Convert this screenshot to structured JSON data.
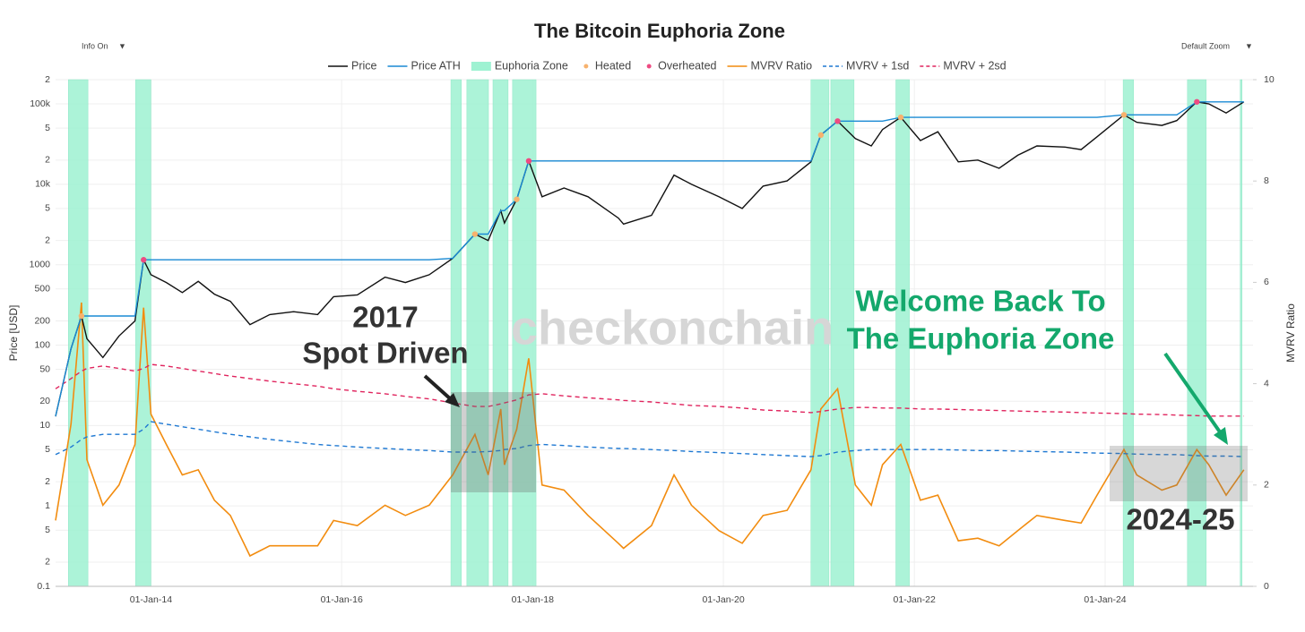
{
  "chart_data": {
    "type": "line",
    "title": "The Bitcoin Euphoria Zone",
    "controls": [
      "Info On",
      "Default Zoom"
    ],
    "watermark": "checkonchain",
    "ylabel": "Price [USD]",
    "y2label": "MVRV Ratio",
    "ylog": true,
    "grid": true,
    "legend": "top",
    "xlim": [
      "2013-01-01",
      "2025-07-20"
    ],
    "xticks": [
      {
        "value": "2014-01-01",
        "label": "01-Jan-14"
      },
      {
        "value": "2016-01-01",
        "label": "01-Jan-16"
      },
      {
        "value": "2018-01-01",
        "label": "01-Jan-18"
      },
      {
        "value": "2020-01-01",
        "label": "01-Jan-20"
      },
      {
        "value": "2022-01-01",
        "label": "01-Jan-22"
      },
      {
        "value": "2024-01-01",
        "label": "01-Jan-24"
      }
    ],
    "ylim": [
      0.1,
      200000
    ],
    "yticks": [
      0.1,
      {
        "value": 0.2,
        "label": "2"
      },
      {
        "value": 0.5,
        "label": "5"
      },
      1,
      2,
      5,
      10,
      20,
      50,
      100,
      200,
      500,
      1000,
      {
        "value": 2000,
        "label": "2"
      },
      {
        "value": 5000,
        "label": "5"
      },
      {
        "value": 10000,
        "label": "10k"
      },
      {
        "value": 20000,
        "label": "2"
      },
      {
        "value": 50000,
        "label": "5"
      },
      {
        "value": 100000,
        "label": "100k"
      },
      {
        "value": 200000,
        "label": "2"
      }
    ],
    "y2lim": [
      0,
      10
    ],
    "y2ticks": [
      0,
      2,
      4,
      6,
      8,
      10
    ],
    "x": [
      "2013-01-01",
      "2013-03-01",
      "2013-04-10",
      "2013-05-01",
      "2013-07-01",
      "2013-09-01",
      "2013-11-01",
      "2013-12-04",
      "2014-01-01",
      "2014-03-01",
      "2014-05-01",
      "2014-07-01",
      "2014-09-01",
      "2014-11-01",
      "2015-01-15",
      "2015-04-01",
      "2015-07-01",
      "2015-10-01",
      "2015-12-01",
      "2016-03-01",
      "2016-06-15",
      "2016-09-01",
      "2016-12-01",
      "2017-03-01",
      "2017-05-25",
      "2017-07-15",
      "2017-09-01",
      "2017-09-15",
      "2017-11-01",
      "2017-12-17",
      "2018-02-06",
      "2018-05-01",
      "2018-08-01",
      "2018-11-25",
      "2018-12-15",
      "2019-04-01",
      "2019-06-26",
      "2019-09-01",
      "2019-12-15",
      "2020-03-13",
      "2020-06-01",
      "2020-09-01",
      "2020-12-01",
      "2021-01-08",
      "2021-03-13",
      "2021-05-20",
      "2021-07-20",
      "2021-09-01",
      "2021-11-10",
      "2022-01-24",
      "2022-04-01",
      "2022-06-18",
      "2022-09-01",
      "2022-11-21",
      "2023-02-01",
      "2023-04-15",
      "2023-08-01",
      "2023-10-01",
      "2023-12-01",
      "2024-03-13",
      "2024-05-01",
      "2024-08-05",
      "2024-10-01",
      "2024-12-17",
      "2025-02-01",
      "2025-04-08",
      "2025-06-15"
    ],
    "series": [
      {
        "name": "Price",
        "style": "line",
        "axis": "y",
        "color": "#111111",
        "values": [
          13,
          90,
          230,
          120,
          70,
          130,
          200,
          1150,
          750,
          600,
          450,
          620,
          430,
          350,
          180,
          240,
          260,
          240,
          400,
          420,
          700,
          600,
          750,
          1200,
          2400,
          2000,
          4700,
          3300,
          6500,
          19500,
          7000,
          9000,
          7000,
          3800,
          3200,
          4100,
          13000,
          10000,
          7000,
          5000,
          9500,
          11000,
          19000,
          41000,
          61000,
          37000,
          30000,
          48000,
          68000,
          35000,
          45000,
          19000,
          20000,
          15800,
          23000,
          30000,
          29000,
          27000,
          39000,
          73000,
          59000,
          54000,
          62000,
          106000,
          100000,
          77000,
          106000
        ]
      },
      {
        "name": "Price ATH",
        "style": "line",
        "axis": "y",
        "color": "#1a8ad4",
        "values": [
          13,
          90,
          230,
          230,
          230,
          230,
          230,
          1150,
          1150,
          1150,
          1150,
          1150,
          1150,
          1150,
          1150,
          1150,
          1150,
          1150,
          1150,
          1150,
          1150,
          1150,
          1150,
          1200,
          2400,
          2400,
          4700,
          4700,
          6500,
          19500,
          19500,
          19500,
          19500,
          19500,
          19500,
          19500,
          19500,
          19500,
          19500,
          19500,
          19500,
          19500,
          19500,
          41000,
          61000,
          61000,
          61000,
          61000,
          68000,
          68000,
          68000,
          68000,
          68000,
          68000,
          68000,
          68000,
          68000,
          68000,
          68000,
          73000,
          73000,
          73000,
          73000,
          106000,
          106000,
          106000,
          106000
        ]
      },
      {
        "name": "Euphoria Zone",
        "style": "zone",
        "color": "#9ef2d2",
        "zones": [
          [
            "2013-02-19",
            "2013-05-05"
          ],
          [
            "2013-11-03",
            "2014-01-01"
          ],
          [
            "2017-02-22",
            "2017-04-03"
          ],
          [
            "2017-04-24",
            "2017-07-16"
          ],
          [
            "2017-08-02",
            "2017-09-29"
          ],
          [
            "2017-10-16",
            "2018-01-14"
          ],
          [
            "2020-12-01",
            "2021-02-08"
          ],
          [
            "2021-02-15",
            "2021-05-15"
          ],
          [
            "2021-10-22",
            "2021-12-13"
          ],
          [
            "2024-03-10",
            "2024-04-19"
          ],
          [
            "2024-11-11",
            "2025-01-22"
          ],
          [
            "2025-06-01",
            "2025-06-08"
          ]
        ]
      },
      {
        "name": "Heated",
        "style": "marker",
        "axis": "y",
        "color": "#f7b26e",
        "x": [
          "2013-04-10",
          "2017-05-25",
          "2017-11-01",
          "2021-01-08",
          "2021-11-10",
          "2024-03-13"
        ],
        "values": [
          230,
          2400,
          6500,
          41000,
          68000,
          73000
        ]
      },
      {
        "name": "Overheated",
        "style": "marker",
        "axis": "y",
        "color": "#ee4b82",
        "x": [
          "2013-12-04",
          "2017-12-17",
          "2021-03-13",
          "2024-12-17"
        ],
        "values": [
          1150,
          19500,
          61000,
          106000
        ]
      },
      {
        "name": "MVRV Ratio",
        "style": "line",
        "axis": "y2",
        "color": "#f28c0f",
        "values": [
          1.3,
          3.2,
          5.6,
          2.5,
          1.6,
          2.0,
          2.8,
          5.5,
          3.4,
          2.8,
          2.2,
          2.3,
          1.7,
          1.4,
          0.6,
          0.8,
          0.8,
          0.8,
          1.3,
          1.2,
          1.6,
          1.4,
          1.6,
          2.2,
          3.0,
          2.2,
          3.5,
          2.4,
          3.1,
          4.5,
          2.0,
          1.9,
          1.4,
          0.85,
          0.75,
          1.2,
          2.2,
          1.6,
          1.1,
          0.85,
          1.4,
          1.5,
          2.3,
          3.5,
          3.9,
          2.0,
          1.6,
          2.4,
          2.8,
          1.7,
          1.8,
          0.9,
          0.95,
          0.8,
          1.1,
          1.4,
          1.3,
          1.25,
          1.8,
          2.7,
          2.2,
          1.9,
          2.0,
          2.7,
          2.4,
          1.8,
          2.3
        ]
      },
      {
        "name": "MVRV + 1sd",
        "style": "dash",
        "axis": "y2",
        "color": "#1e78d2",
        "values": [
          2.6,
          2.75,
          2.9,
          2.95,
          3.0,
          3.0,
          3.0,
          3.1,
          3.25,
          3.2,
          3.15,
          3.1,
          3.05,
          3.0,
          2.95,
          2.9,
          2.85,
          2.8,
          2.78,
          2.75,
          2.72,
          2.7,
          2.68,
          2.65,
          2.65,
          2.66,
          2.68,
          2.7,
          2.72,
          2.78,
          2.8,
          2.78,
          2.75,
          2.72,
          2.72,
          2.7,
          2.68,
          2.66,
          2.64,
          2.62,
          2.6,
          2.58,
          2.56,
          2.58,
          2.65,
          2.68,
          2.7,
          2.7,
          2.7,
          2.7,
          2.7,
          2.69,
          2.68,
          2.68,
          2.67,
          2.66,
          2.65,
          2.64,
          2.63,
          2.62,
          2.61,
          2.6,
          2.6,
          2.58,
          2.57,
          2.57,
          2.56
        ]
      },
      {
        "name": "MVRV + 2sd",
        "style": "dash",
        "axis": "y2",
        "color": "#e0245e",
        "values": [
          3.9,
          4.1,
          4.25,
          4.3,
          4.35,
          4.3,
          4.25,
          4.3,
          4.38,
          4.35,
          4.3,
          4.25,
          4.2,
          4.15,
          4.1,
          4.05,
          4.0,
          3.95,
          3.9,
          3.85,
          3.8,
          3.75,
          3.7,
          3.62,
          3.55,
          3.55,
          3.6,
          3.62,
          3.68,
          3.78,
          3.8,
          3.76,
          3.72,
          3.68,
          3.67,
          3.64,
          3.6,
          3.57,
          3.55,
          3.52,
          3.48,
          3.46,
          3.43,
          3.45,
          3.5,
          3.53,
          3.53,
          3.52,
          3.52,
          3.5,
          3.5,
          3.49,
          3.48,
          3.47,
          3.46,
          3.45,
          3.44,
          3.43,
          3.42,
          3.41,
          3.4,
          3.39,
          3.38,
          3.37,
          3.36,
          3.36,
          3.36
        ]
      }
    ],
    "annotations": [
      {
        "lines": [
          "2017",
          "Spot Driven"
        ],
        "color": "#333333"
      },
      {
        "lines": [
          "Welcome Back To",
          "The Euphoria Zone"
        ],
        "color": "#14a86c"
      },
      {
        "lines": [
          "2024-25"
        ],
        "color": "#333333"
      }
    ]
  }
}
